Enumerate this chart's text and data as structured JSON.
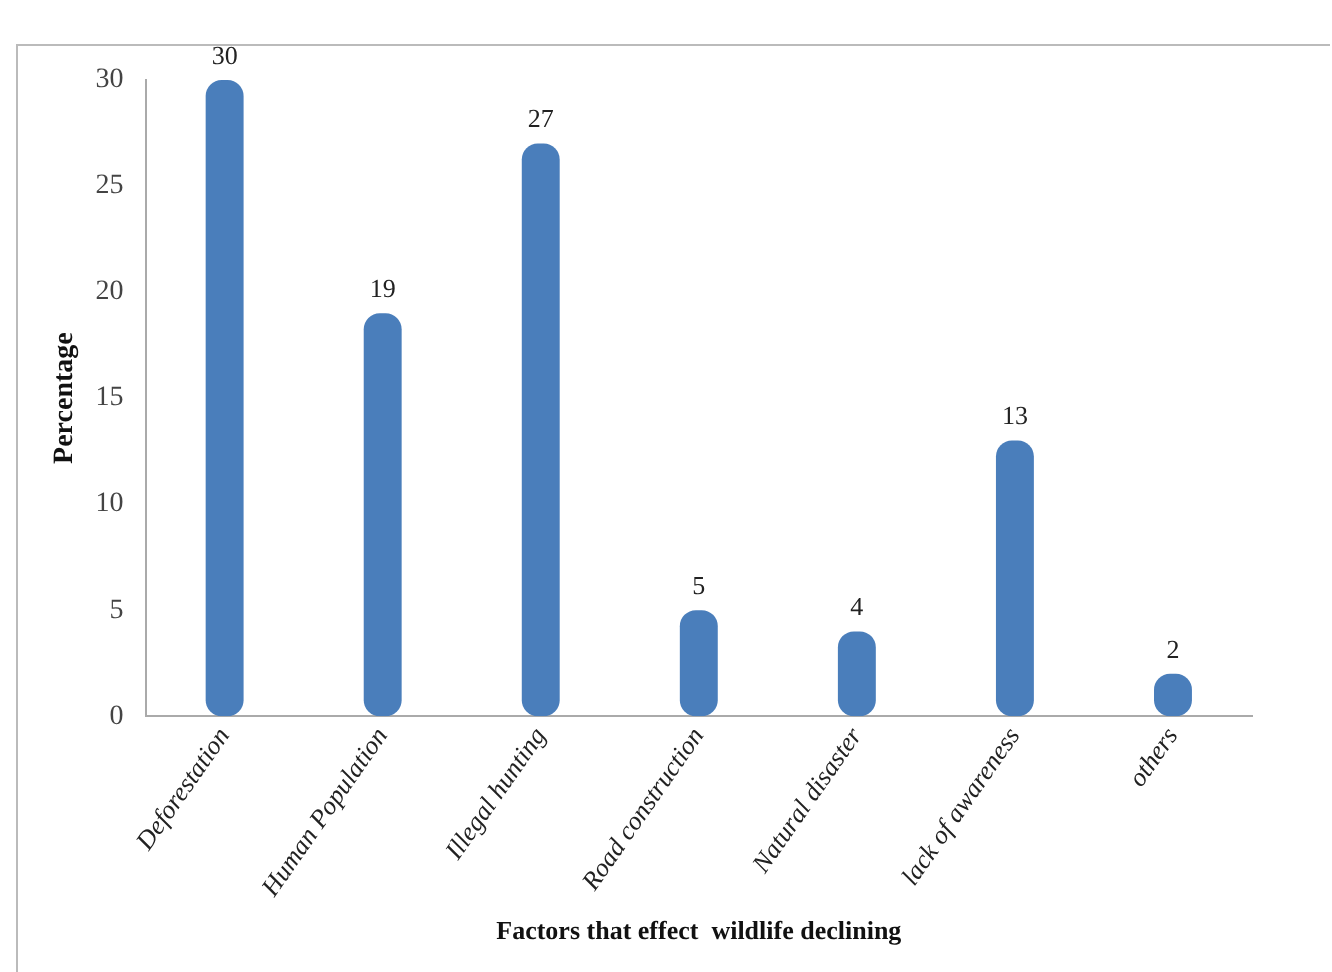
{
  "chart_data": {
    "type": "bar",
    "categories": [
      "Deforestation",
      "Human Population",
      "Illegal hunting",
      "Road construction",
      "Natural disaster",
      "lack of awareness",
      "others"
    ],
    "values": [
      30,
      19,
      27,
      5,
      4,
      13,
      2
    ],
    "color": "#4a7ebb",
    "ylim": [
      0,
      30
    ],
    "yticks": [
      0,
      5,
      10,
      15,
      20,
      25,
      30
    ],
    "grid": false,
    "legend": false,
    "data_labels": true,
    "xlabel": "Factors that effect  wildlife declining",
    "ylabel": "Percentage"
  }
}
